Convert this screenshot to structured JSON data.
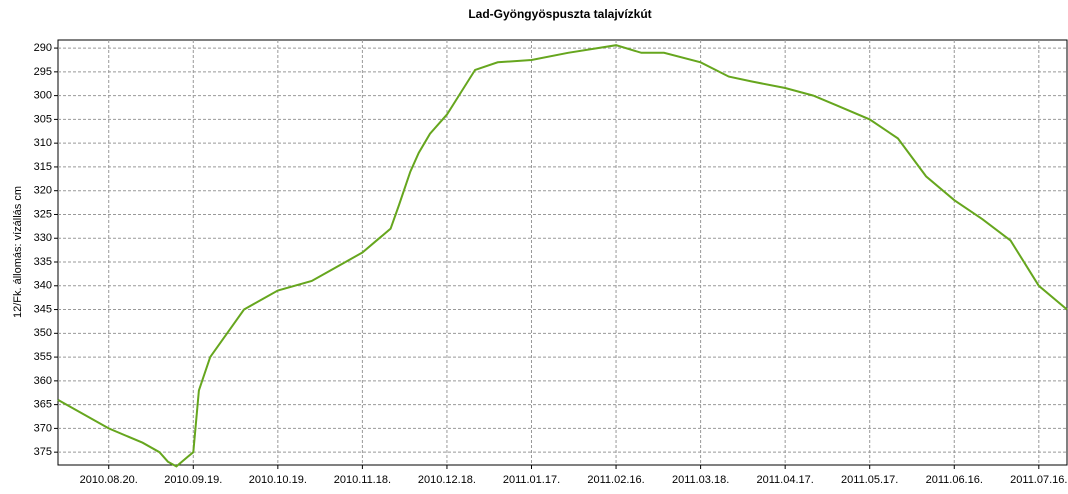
{
  "chart_data": {
    "type": "line",
    "title": "Lad-Gyöngyöspuszta talajvízkút",
    "y_label": "12/Fk. állomás: vízállás cm",
    "y_inverted": true,
    "grid": true,
    "x": [
      "2010-08-02",
      "2010-08-08",
      "2010-08-14",
      "2010-08-20",
      "2010-09-01",
      "2010-09-07",
      "2010-09-10",
      "2010-09-13",
      "2010-09-17",
      "2010-09-19",
      "2010-09-21",
      "2010-09-25",
      "2010-10-01",
      "2010-10-07",
      "2010-10-13",
      "2010-10-19",
      "2010-10-31",
      "2010-11-06",
      "2010-11-12",
      "2010-11-18",
      "2010-11-24",
      "2010-11-28",
      "2010-12-01",
      "2010-12-05",
      "2010-12-08",
      "2010-12-12",
      "2010-12-18",
      "2010-12-28",
      "2011-01-05",
      "2011-01-17",
      "2011-01-30",
      "2011-02-16",
      "2011-02-25",
      "2011-03-05",
      "2011-03-18",
      "2011-03-28",
      "2011-04-05",
      "2011-04-17",
      "2011-04-27",
      "2011-05-05",
      "2011-05-17",
      "2011-05-27",
      "2011-06-06",
      "2011-06-16",
      "2011-06-26",
      "2011-07-06",
      "2011-07-16",
      "2011-07-26"
    ],
    "series": [
      {
        "name": "12/Fk.",
        "color": "#66a61e",
        "values": [
          364,
          366,
          368,
          370,
          373,
          375,
          377,
          378,
          376,
          375,
          362,
          355,
          350,
          345,
          343,
          341,
          339,
          337,
          335,
          333,
          330,
          328,
          323,
          316,
          312,
          308,
          304,
          294.6,
          293,
          292.5,
          291,
          289.4,
          291,
          291,
          293,
          296,
          297,
          298.4,
          300,
          302,
          305,
          309,
          317,
          322,
          326,
          330.5,
          340,
          345
        ]
      }
    ],
    "xlim": [
      "2010-08-02",
      "2011-07-26"
    ],
    "xticks": [
      {
        "value": "2010-08-20",
        "label": "2010.08.20."
      },
      {
        "value": "2010-09-19",
        "label": "2010.09.19."
      },
      {
        "value": "2010-10-19",
        "label": "2010.10.19."
      },
      {
        "value": "2010-11-18",
        "label": "2010.11.18."
      },
      {
        "value": "2010-12-18",
        "label": "2010.12.18."
      },
      {
        "value": "2011-01-17",
        "label": "2011.01.17."
      },
      {
        "value": "2011-02-16",
        "label": "2011.02.16."
      },
      {
        "value": "2011-03-18",
        "label": "2011.03.18."
      },
      {
        "value": "2011-04-17",
        "label": "2011.04.17."
      },
      {
        "value": "2011-05-17",
        "label": "2011.05.17."
      },
      {
        "value": "2011-06-16",
        "label": "2011.06.16."
      },
      {
        "value": "2011-07-16",
        "label": "2011.07.16."
      }
    ],
    "ylim": [
      288.3,
      377.7
    ],
    "yticks": [
      290,
      295,
      300,
      305,
      310,
      315,
      320,
      325,
      330,
      335,
      340,
      345,
      350,
      355,
      360,
      365,
      370,
      375
    ]
  }
}
